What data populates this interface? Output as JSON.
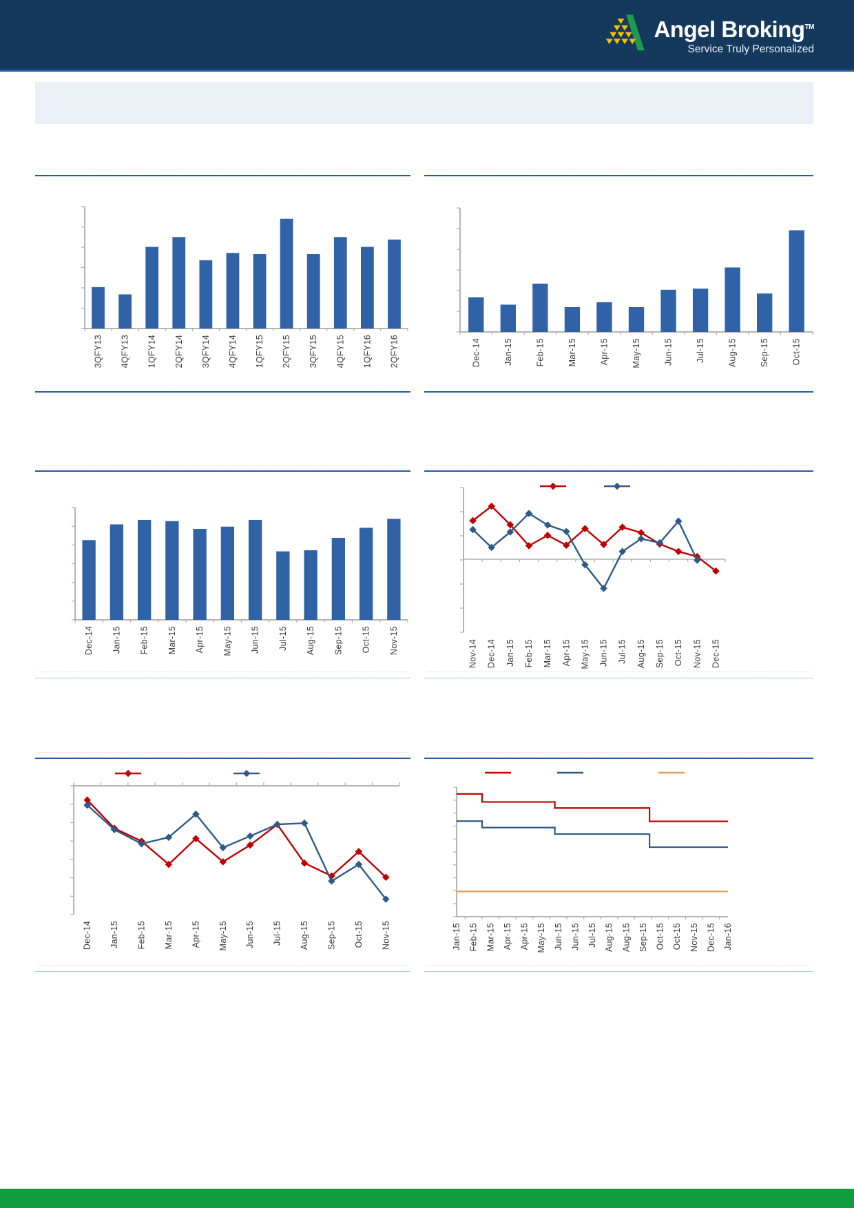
{
  "header": {
    "brand": "Angel Broking",
    "tm": "TM",
    "tagline": "Service Truly Personalized"
  },
  "banner": {
    "text": ""
  },
  "colors": {
    "header_navy": "#15395D",
    "accent_rule_blue": "#1E5CA8",
    "pale_rule_blue": "#A9C3DC",
    "bar_blue": "#2F62A7",
    "series_red": "#C00000",
    "series_dark_blue": "#2E5A87",
    "series_orange": "#EC9C53",
    "axis_gray": "#9C9C9C",
    "label_gray": "#3A3A3A",
    "footer_green": "#139C3C",
    "banner_bg": "#EBF0F6"
  },
  "chart_data": [
    {
      "type": "bar",
      "title": "",
      "categories": [
        "3QFY13",
        "4QFY13",
        "1QFY14",
        "2QFY14",
        "3QFY14",
        "4QFY14",
        "1QFY15",
        "2QFY15",
        "3QFY15",
        "4QFY15",
        "1QFY16",
        "2QFY16"
      ],
      "values": [
        34,
        28,
        67,
        75,
        56,
        62,
        61,
        90,
        61,
        75,
        67,
        73
      ],
      "bar_color": "#2F62A7",
      "xlabel": "",
      "ylabel": "",
      "ylim": [
        0,
        100
      ],
      "grid": false,
      "y_tick_count": 6,
      "y_tick_labels_visible": false
    },
    {
      "type": "bar",
      "title": "",
      "categories": [
        "Dec-14",
        "Jan-15",
        "Feb-15",
        "Mar-15",
        "Apr-15",
        "May-15",
        "Jun-15",
        "Jul-15",
        "Aug-15",
        "Sep-15",
        "Oct-15"
      ],
      "values": [
        28,
        22,
        39,
        20,
        24,
        20,
        34,
        35,
        52,
        31,
        82
      ],
      "bar_color": "#2F62A7",
      "xlabel": "",
      "ylabel": "",
      "ylim": [
        0,
        100
      ],
      "grid": false,
      "y_tick_count": 6,
      "y_tick_labels_visible": false
    },
    {
      "type": "bar",
      "title": "",
      "categories": [
        "Dec-14",
        "Jan-15",
        "Feb-15",
        "Mar-15",
        "Apr-15",
        "May-15",
        "Jun-15",
        "Jul-15",
        "Aug-15",
        "Sep-15",
        "Oct-15",
        "Nov-15"
      ],
      "values": [
        71,
        85,
        89,
        88,
        81,
        83,
        89,
        61,
        62,
        73,
        82,
        90
      ],
      "bar_color": "#2F62A7",
      "xlabel": "",
      "ylabel": "",
      "ylim": [
        0,
        100
      ],
      "grid": false,
      "y_tick_count": 6,
      "y_tick_labels_visible": false
    },
    {
      "type": "line",
      "title": "",
      "categories": [
        "Nov-14",
        "Dec-14",
        "Jan-15",
        "Feb-15",
        "Mar-15",
        "Apr-15",
        "May-15",
        "Jun-15",
        "Jul-15",
        "Aug-15",
        "Sep-15",
        "Oct-15",
        "Nov-15",
        "Dec-15"
      ],
      "series": [
        {
          "name": "series-red",
          "color": "#C00000",
          "marker": "diamond",
          "values": [
            16,
            22,
            14.3,
            5.6,
            9.9,
            5.8,
            12.7,
            6.1,
            13.3,
            11,
            6.3,
            3.2,
            1.1,
            -4.9
          ]
        },
        {
          "name": "series-blue",
          "color": "#2E5A87",
          "marker": "diamond",
          "values": [
            12.3,
            4.9,
            11.3,
            19,
            14.2,
            11.5,
            -2.3,
            -12.1,
            3.2,
            8.5,
            6.8,
            15.8,
            -0.4
          ]
        }
      ],
      "xlabel": "",
      "ylabel": "",
      "zero_axis_crossing": true,
      "legend_position": "top",
      "legend_labels_visible": false,
      "grid": false,
      "y_tick_labels_visible": false
    },
    {
      "type": "line",
      "title": "",
      "categories": [
        "Dec-14",
        "Jan-15",
        "Feb-15",
        "Mar-15",
        "Apr-15",
        "May-15",
        "Jun-15",
        "Jul-15",
        "Aug-15",
        "Sep-15",
        "Oct-15",
        "Nov-15"
      ],
      "series": [
        {
          "name": "series-red",
          "color": "#C00000",
          "marker": "diamond",
          "values": [
            89,
            67,
            57,
            39,
            59,
            41,
            54,
            70,
            40,
            30,
            49,
            29
          ]
        },
        {
          "name": "series-blue",
          "color": "#2E5A87",
          "marker": "diamond",
          "values": [
            85,
            66,
            55,
            60,
            78,
            52,
            61,
            70,
            71,
            26,
            39,
            12
          ]
        }
      ],
      "xlabel": "",
      "ylabel": "",
      "x_axis_position": "top",
      "legend_position": "top",
      "legend_labels_visible": false,
      "grid": false,
      "ylim": [
        0,
        100
      ],
      "y_tick_labels_visible": false
    },
    {
      "type": "step",
      "title": "",
      "categories": [
        "Jan-15",
        "Feb-15",
        "Mar-15",
        "Apr-15",
        "Apr-15",
        "May-15",
        "Jun-15",
        "Jun-15",
        "Jul-15",
        "Aug-15",
        "Aug-15",
        "Sep-15",
        "Oct-15",
        "Oct-15",
        "Nov-15",
        "Dec-15",
        "Jan-16"
      ],
      "break_fractions": [
        0.094,
        0.362,
        0.711
      ],
      "series": [
        {
          "name": "step-red",
          "color": "#C00000",
          "levels": [
            94.8,
            88.6,
            83.9,
            73.6
          ]
        },
        {
          "name": "step-blue",
          "color": "#2E5A87",
          "levels": [
            73.8,
            68.8,
            63.8,
            53.7
          ]
        },
        {
          "name": "step-orange",
          "color": "#EC9C53",
          "levels": [
            19.5,
            19.5,
            19.5,
            19.5
          ]
        }
      ],
      "xlabel": "",
      "ylabel": "",
      "legend_position": "top",
      "legend_labels_visible": false,
      "grid": false,
      "ylim": [
        0,
        100
      ],
      "y_tick_count": 10,
      "y_tick_labels_visible": false
    }
  ]
}
